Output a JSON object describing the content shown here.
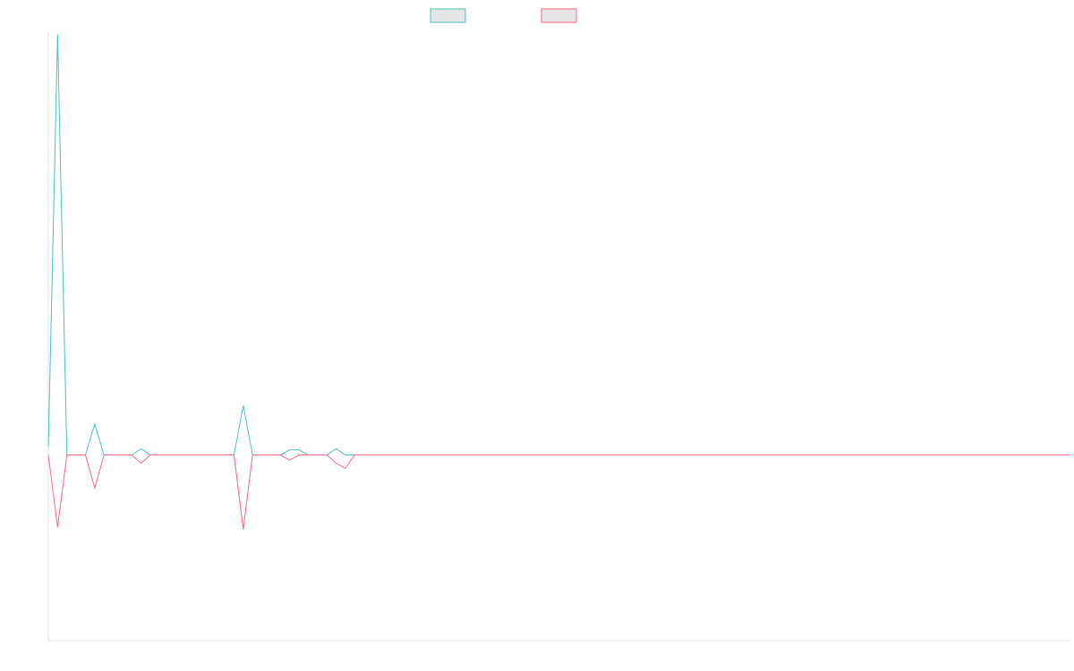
{
  "chart_data": {
    "type": "line",
    "title": "",
    "xlabel": "",
    "ylabel": "",
    "grid": false,
    "legend": "top-center",
    "xlim": [
      0,
      110
    ],
    "ylim": [
      -180,
      410
    ],
    "series": [
      {
        "name": "",
        "color": "#4bc0c0",
        "values": [
          8,
          408,
          0,
          0,
          0,
          30,
          0,
          0,
          0,
          0,
          6,
          0,
          0,
          0,
          0,
          0,
          0,
          0,
          0,
          0,
          0,
          48,
          0,
          0,
          0,
          0,
          5,
          5,
          0,
          0,
          0,
          6,
          0,
          0,
          0,
          0,
          0,
          0,
          0,
          0,
          0,
          0,
          0,
          0,
          0,
          0,
          0,
          0,
          0,
          0,
          0,
          0,
          0,
          0,
          0,
          0,
          0,
          0,
          0,
          0,
          0,
          0,
          0,
          0,
          0,
          0,
          0,
          0,
          0,
          0,
          0,
          0,
          0,
          0,
          0,
          0,
          0,
          0,
          0,
          0,
          0,
          0,
          0,
          0,
          0,
          0,
          0,
          0,
          0,
          0,
          0,
          0,
          0,
          0,
          0,
          0,
          0,
          0,
          0,
          0,
          0,
          0,
          0,
          0,
          0,
          0,
          0,
          0,
          0,
          0,
          0
        ]
      },
      {
        "name": "",
        "color": "#ff6384",
        "values": [
          0,
          -70,
          0,
          0,
          0,
          -32,
          0,
          0,
          0,
          0,
          -8,
          0,
          0,
          0,
          0,
          0,
          0,
          0,
          0,
          0,
          0,
          -72,
          0,
          0,
          0,
          0,
          -5,
          0,
          0,
          0,
          0,
          -8,
          -13,
          0,
          0,
          0,
          0,
          0,
          0,
          0,
          0,
          0,
          0,
          0,
          0,
          0,
          0,
          0,
          0,
          0,
          0,
          0,
          0,
          0,
          0,
          0,
          0,
          0,
          0,
          0,
          0,
          0,
          0,
          0,
          0,
          0,
          0,
          0,
          0,
          0,
          0,
          0,
          0,
          0,
          0,
          0,
          0,
          0,
          0,
          0,
          0,
          0,
          0,
          0,
          0,
          0,
          0,
          0,
          0,
          0,
          0,
          0,
          0,
          0,
          0,
          0,
          0,
          0,
          0,
          0,
          0,
          0,
          0,
          0,
          0,
          0,
          0,
          0,
          0,
          0,
          0
        ]
      }
    ]
  }
}
